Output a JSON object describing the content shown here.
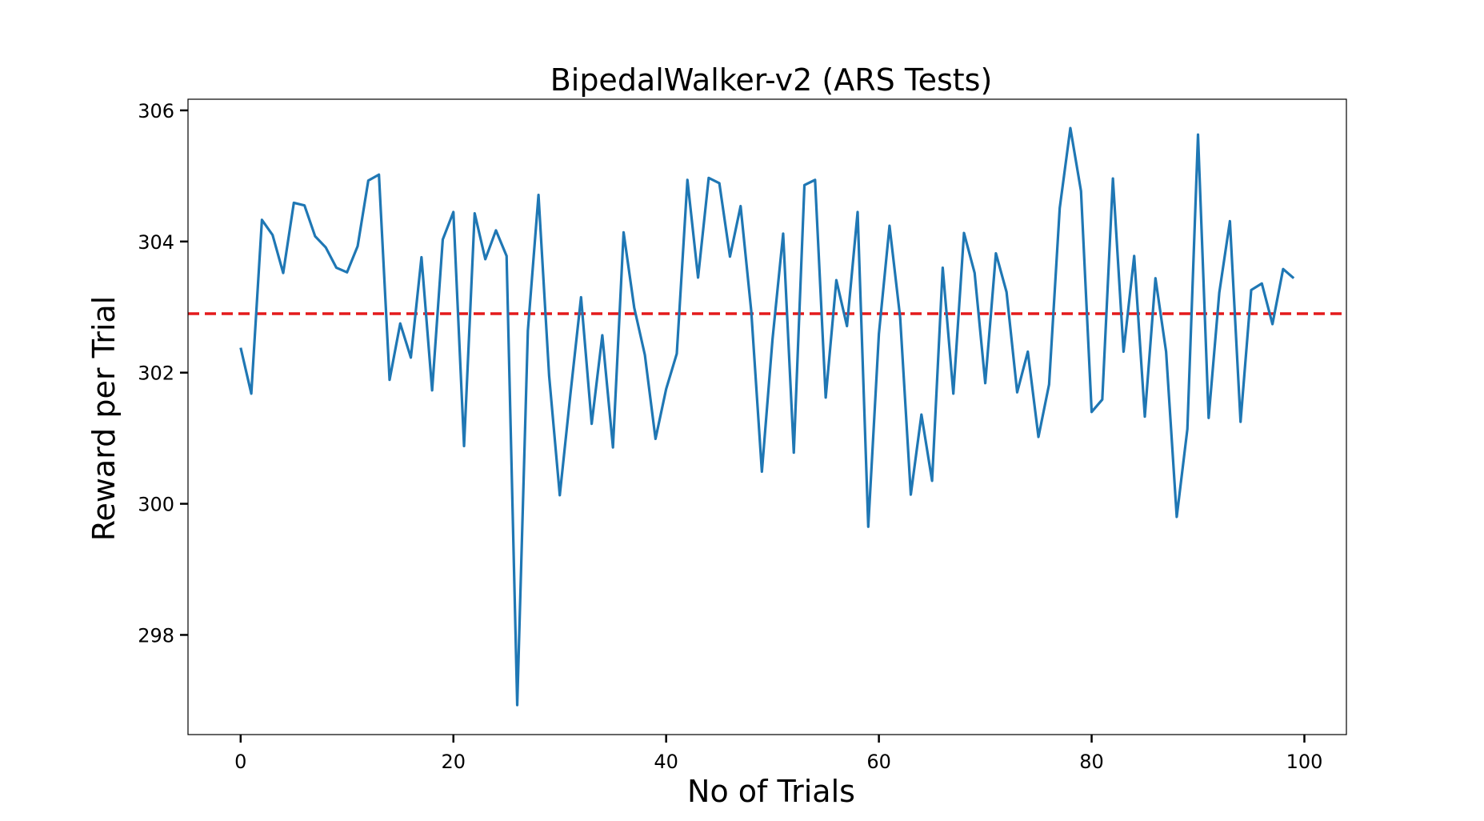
{
  "chart_data": {
    "type": "line",
    "title": "BipedalWalker-v2 (ARS Tests)",
    "xlabel": "No of Trials",
    "ylabel": "Reward per Trial",
    "xlim": [
      -4.95,
      103.95
    ],
    "ylim": [
      296.48,
      306.17
    ],
    "xticks": [
      0,
      20,
      40,
      60,
      80,
      100
    ],
    "yticks": [
      298,
      300,
      302,
      304,
      306
    ],
    "grid": false,
    "legend": "none",
    "colors": {
      "series": "#1f77b4",
      "mean_line": "#e41a1c",
      "axes": "#000000"
    },
    "mean_line": {
      "style": "dashed",
      "y": 302.9
    },
    "series": [
      {
        "x": [
          0,
          1,
          2,
          3,
          4,
          5,
          6,
          7,
          8,
          9,
          10,
          11,
          12,
          13,
          14,
          15,
          16,
          17,
          18,
          19,
          20,
          21,
          22,
          23,
          24,
          25,
          26,
          27,
          28,
          29,
          30,
          31,
          32,
          33,
          34,
          35,
          36,
          37,
          38,
          39,
          40,
          41,
          42,
          43,
          44,
          45,
          46,
          47,
          48,
          49,
          50,
          51,
          52,
          53,
          54,
          55,
          56,
          57,
          58,
          59,
          60,
          61,
          62,
          63,
          64,
          65,
          66,
          67,
          68,
          69,
          70,
          71,
          72,
          73,
          74,
          75,
          76,
          77,
          78,
          79,
          80,
          81,
          82,
          83,
          84,
          85,
          86,
          87,
          88,
          89,
          90,
          91,
          92,
          93,
          94,
          95,
          96,
          97,
          98,
          99
        ],
        "values": [
          302.38,
          301.68,
          304.33,
          304.1,
          303.52,
          304.59,
          304.55,
          304.08,
          303.91,
          303.6,
          303.53,
          303.93,
          304.93,
          305.02,
          301.89,
          302.75,
          302.23,
          303.76,
          301.73,
          304.03,
          304.45,
          300.88,
          304.43,
          303.73,
          304.17,
          303.78,
          296.93,
          302.64,
          304.71,
          301.95,
          300.13,
          301.67,
          303.15,
          301.22,
          302.57,
          300.86,
          304.14,
          302.99,
          302.27,
          300.99,
          301.75,
          302.29,
          304.94,
          303.45,
          304.97,
          304.89,
          303.77,
          304.54,
          302.94,
          300.49,
          302.51,
          304.12,
          300.78,
          304.86,
          304.94,
          301.62,
          303.41,
          302.71,
          304.45,
          299.65,
          302.59,
          304.24,
          302.84,
          300.14,
          301.36,
          300.35,
          303.6,
          301.68,
          304.13,
          303.52,
          301.84,
          303.82,
          303.23,
          301.7,
          302.32,
          301.02,
          301.82,
          304.51,
          305.73,
          304.77,
          301.4,
          301.59,
          304.96,
          302.32,
          303.78,
          301.33,
          303.44,
          302.32,
          299.8,
          301.14,
          305.63,
          301.31,
          303.22,
          304.31,
          301.25,
          303.26,
          303.36,
          302.74,
          303.58,
          303.44
        ]
      }
    ]
  }
}
